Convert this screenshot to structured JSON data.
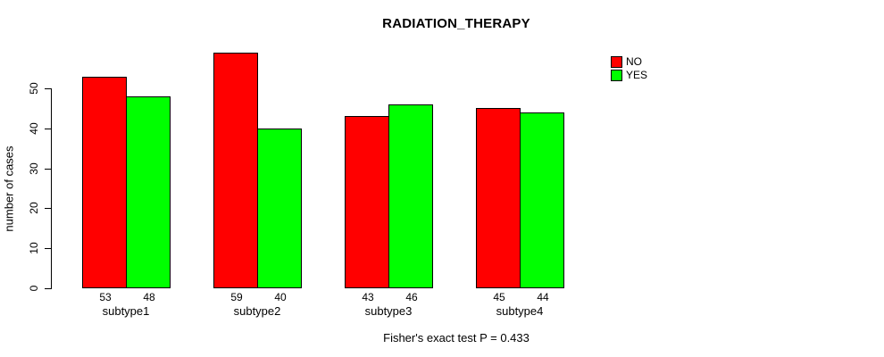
{
  "chart_data": {
    "type": "bar",
    "title": "RADIATION_THERAPY",
    "categories": [
      "subtype1",
      "subtype2",
      "subtype3",
      "subtype4"
    ],
    "series": [
      {
        "name": "NO",
        "color": "#ff0000",
        "values": [
          53,
          59,
          43,
          45
        ]
      },
      {
        "name": "YES",
        "color": "#00ff00",
        "values": [
          48,
          40,
          46,
          44
        ]
      }
    ],
    "xlabel": "",
    "ylabel": "number of cases",
    "ylim": [
      0,
      50
    ],
    "yticks": [
      0,
      10,
      20,
      30,
      40,
      50
    ],
    "grid": false,
    "legend_position": "top-right",
    "bar_value_labels": true,
    "annotation": "Fisher's exact test P = 0.433"
  }
}
